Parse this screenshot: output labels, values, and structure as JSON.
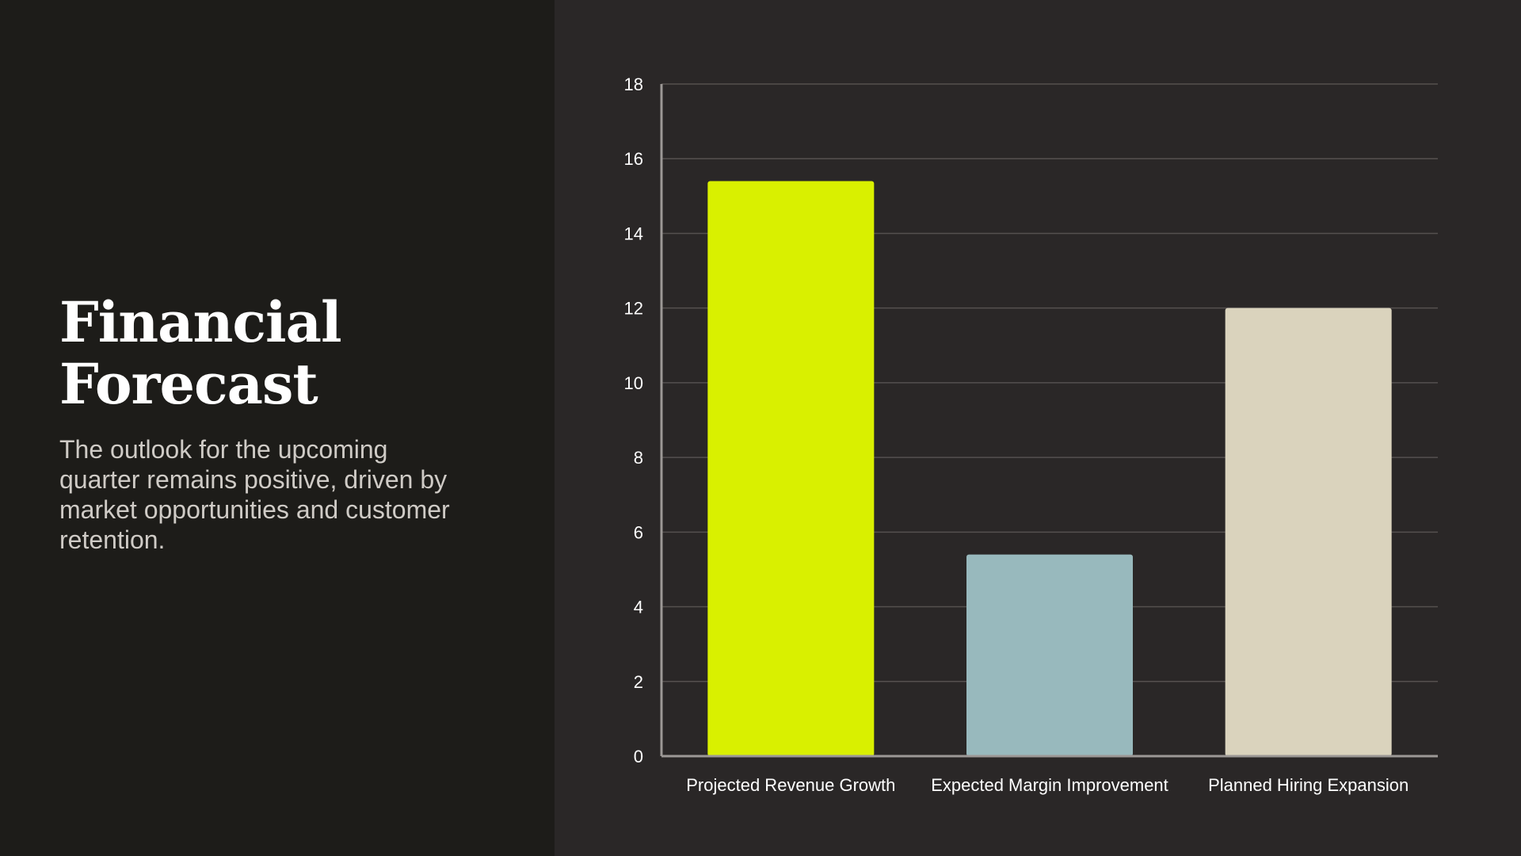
{
  "slide": {
    "title": "Financial Forecast",
    "description": "The outlook for the upcoming quarter remains positive, driven by market opportunities and customer retention."
  },
  "colors": {
    "left_panel": "#1d1c19",
    "right_panel": "#2a2727",
    "grid": "#55504f",
    "axis": "#9c9896"
  },
  "chart_data": {
    "type": "bar",
    "categories": [
      "Projected Revenue Growth",
      "Expected Margin Improvement",
      "Planned Hiring Expansion"
    ],
    "values": [
      15.4,
      5.4,
      12
    ],
    "colors": [
      "#d9f000",
      "#98b9bd",
      "#dad3bd"
    ],
    "title": "",
    "xlabel": "",
    "ylabel": "",
    "ylim": [
      0,
      18
    ],
    "yticks": [
      0,
      2,
      4,
      6,
      8,
      10,
      12,
      14,
      16,
      18
    ],
    "grid": true,
    "legend": "none"
  }
}
